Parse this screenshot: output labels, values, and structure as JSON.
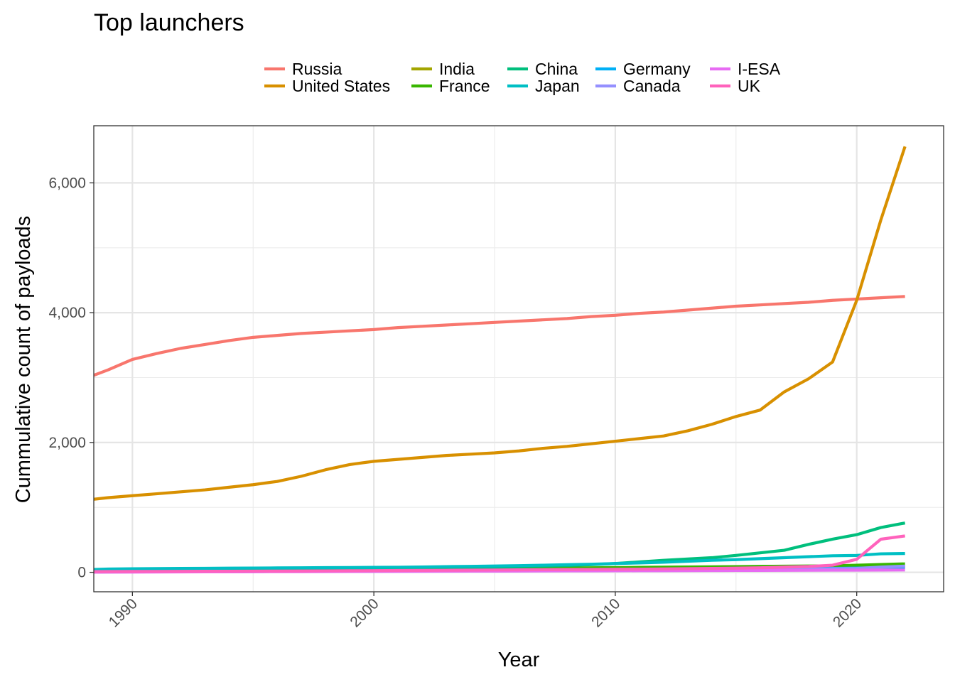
{
  "chart_data": {
    "type": "line",
    "title": "Top launchers",
    "subtitle": "",
    "xlabel": "Year",
    "ylabel": "Cummulative count of payloads",
    "xlim": [
      1988.4,
      2023.6
    ],
    "ylim": [
      -300,
      6880
    ],
    "x_ticks": [
      1990,
      2000,
      2010,
      2020
    ],
    "x_tick_labels": [
      "1990",
      "2000",
      "2010",
      "2020"
    ],
    "y_ticks": [
      0,
      2000,
      4000,
      6000
    ],
    "y_tick_labels": [
      "0",
      "2,000",
      "4,000",
      "6,000"
    ],
    "grid": true,
    "legend_position": "top",
    "x": [
      1988,
      1989,
      1990,
      1991,
      1992,
      1993,
      1994,
      1995,
      1996,
      1997,
      1998,
      1999,
      2000,
      2001,
      2002,
      2003,
      2004,
      2005,
      2006,
      2007,
      2008,
      2009,
      2010,
      2011,
      2012,
      2013,
      2014,
      2015,
      2016,
      2017,
      2018,
      2019,
      2020,
      2021,
      2022
    ],
    "series": [
      {
        "name": "Russia",
        "color": "#F8766D",
        "values": [
          2980,
          3120,
          3280,
          3370,
          3450,
          3510,
          3570,
          3620,
          3650,
          3680,
          3700,
          3720,
          3740,
          3770,
          3790,
          3810,
          3830,
          3850,
          3870,
          3890,
          3910,
          3940,
          3960,
          3990,
          4010,
          4040,
          4070,
          4100,
          4120,
          4140,
          4160,
          4190,
          4210,
          4230,
          4250
        ]
      },
      {
        "name": "United States",
        "color": "#D89000",
        "values": [
          1110,
          1150,
          1180,
          1210,
          1240,
          1270,
          1310,
          1350,
          1400,
          1480,
          1580,
          1660,
          1710,
          1740,
          1770,
          1800,
          1820,
          1840,
          1870,
          1910,
          1940,
          1980,
          2020,
          2060,
          2100,
          2180,
          2280,
          2400,
          2500,
          2780,
          2980,
          3240,
          4190,
          5430,
          6560
        ]
      },
      {
        "name": "India",
        "color": "#A3A500",
        "values": [
          5,
          6,
          7,
          9,
          11,
          13,
          15,
          17,
          19,
          21,
          23,
          25,
          27,
          29,
          31,
          33,
          35,
          37,
          39,
          41,
          43,
          45,
          48,
          51,
          54,
          57,
          60,
          63,
          67,
          72,
          78,
          84,
          90,
          95,
          100
        ]
      },
      {
        "name": "France",
        "color": "#39B600",
        "values": [
          5,
          8,
          12,
          15,
          18,
          22,
          25,
          28,
          31,
          34,
          37,
          40,
          43,
          46,
          49,
          52,
          55,
          58,
          61,
          64,
          67,
          70,
          73,
          76,
          79,
          82,
          85,
          88,
          91,
          94,
          97,
          100,
          110,
          120,
          130
        ]
      },
      {
        "name": "China",
        "color": "#00BF7D",
        "values": [
          20,
          22,
          25,
          27,
          29,
          31,
          33,
          35,
          38,
          40,
          42,
          44,
          46,
          50,
          55,
          62,
          70,
          78,
          86,
          95,
          105,
          118,
          135,
          160,
          185,
          205,
          225,
          260,
          300,
          340,
          430,
          510,
          580,
          690,
          760
        ]
      },
      {
        "name": "Japan",
        "color": "#00BFC4",
        "values": [
          40,
          50,
          55,
          58,
          60,
          62,
          64,
          66,
          68,
          70,
          72,
          74,
          76,
          78,
          82,
          88,
          92,
          97,
          103,
          110,
          118,
          125,
          135,
          145,
          155,
          170,
          185,
          195,
          210,
          225,
          240,
          255,
          260,
          285,
          290
        ]
      },
      {
        "name": "Germany",
        "color": "#00B0F6",
        "values": [
          5,
          6,
          7,
          8,
          9,
          10,
          11,
          12,
          13,
          14,
          15,
          16,
          17,
          18,
          19,
          20,
          22,
          24,
          26,
          28,
          30,
          32,
          34,
          36,
          38,
          40,
          42,
          45,
          48,
          52,
          56,
          60,
          65,
          70,
          75
        ]
      },
      {
        "name": "Canada",
        "color": "#9590FF",
        "values": [
          5,
          6,
          7,
          8,
          9,
          10,
          11,
          12,
          13,
          14,
          15,
          16,
          17,
          18,
          19,
          20,
          21,
          22,
          23,
          24,
          25,
          27,
          29,
          31,
          33,
          35,
          37,
          40,
          43,
          46,
          50,
          55,
          60,
          80,
          95
        ]
      },
      {
        "name": "I-ESA",
        "color": "#E76BF3",
        "values": [
          2,
          3,
          4,
          5,
          6,
          7,
          8,
          9,
          10,
          11,
          12,
          13,
          14,
          15,
          16,
          17,
          18,
          19,
          20,
          21,
          22,
          23,
          24,
          25,
          26,
          27,
          28,
          29,
          30,
          31,
          32,
          33,
          34,
          35,
          36
        ]
      },
      {
        "name": "UK",
        "color": "#FF62BC",
        "values": [
          10,
          12,
          13,
          14,
          15,
          16,
          17,
          18,
          19,
          20,
          22,
          24,
          26,
          28,
          30,
          32,
          34,
          36,
          38,
          40,
          42,
          44,
          46,
          48,
          52,
          56,
          60,
          64,
          70,
          80,
          90,
          110,
          200,
          510,
          560
        ]
      }
    ]
  }
}
